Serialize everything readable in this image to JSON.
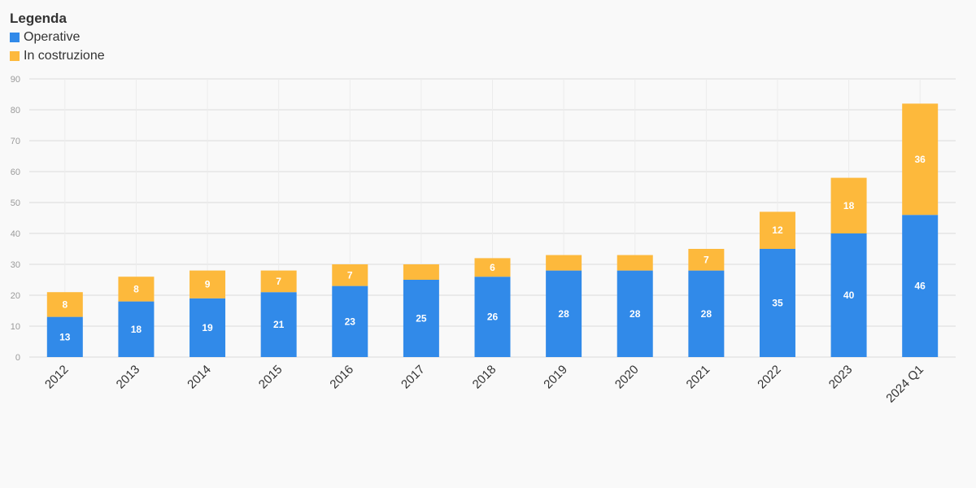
{
  "legend": {
    "title": "Legenda",
    "items": [
      {
        "label": "Operative",
        "color": "#318ae9"
      },
      {
        "label": "In costruzione",
        "color": "#fdb93c"
      }
    ]
  },
  "chart_data": {
    "type": "bar",
    "stacked": true,
    "categories": [
      "2012",
      "2013",
      "2014",
      "2015",
      "2016",
      "2017",
      "2018",
      "2019",
      "2020",
      "2021",
      "2022",
      "2023",
      "2024 Q1"
    ],
    "series": [
      {
        "name": "Operative",
        "color": "#318ae9",
        "values": [
          13,
          18,
          19,
          21,
          23,
          25,
          26,
          28,
          28,
          28,
          35,
          40,
          46
        ]
      },
      {
        "name": "In costruzione",
        "color": "#fdb93c",
        "values": [
          8,
          8,
          9,
          7,
          7,
          5,
          6,
          5,
          5,
          7,
          12,
          18,
          36
        ]
      }
    ],
    "data_labels": [
      [
        "13",
        "18",
        "19",
        "21",
        "23",
        "25",
        "26",
        "28",
        "28",
        "28",
        "35",
        "40",
        "46"
      ],
      [
        "8",
        "8",
        "9",
        "7",
        "7",
        "",
        "6",
        "",
        "",
        "7",
        "12",
        "18",
        "36"
      ]
    ],
    "ylim": [
      0,
      90
    ],
    "yticks": [
      0,
      10,
      20,
      30,
      40,
      50,
      60,
      70,
      80,
      90
    ],
    "grid": true,
    "legend_position": "top-left",
    "title": "",
    "xlabel": "",
    "ylabel": ""
  }
}
